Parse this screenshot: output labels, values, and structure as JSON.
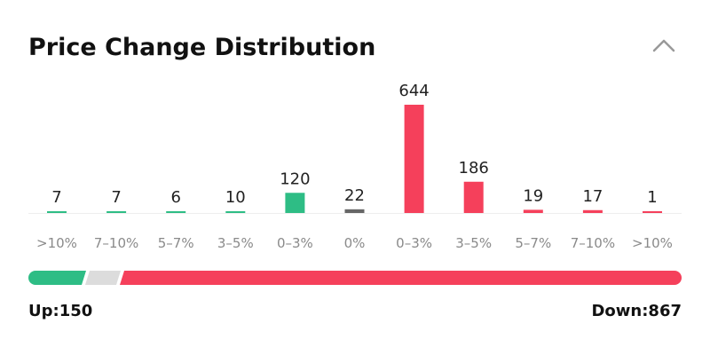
{
  "chart_data": {
    "type": "bar",
    "title": "Price Change Distribution",
    "categories": [
      ">10%",
      "7–10%",
      "5–7%",
      "3–5%",
      "0–3%",
      "0%",
      "0–3%",
      "3–5%",
      "5–7%",
      "7–10%",
      ">10%"
    ],
    "values": [
      7,
      7,
      6,
      10,
      120,
      22,
      644,
      186,
      19,
      17,
      1
    ],
    "colors": [
      "#2ebd85",
      "#2ebd85",
      "#2ebd85",
      "#2ebd85",
      "#2ebd85",
      "#666666",
      "#f5405b",
      "#f5405b",
      "#f5405b",
      "#f5405b",
      "#f5405b"
    ],
    "up_label": "Up:150",
    "down_label": "Down:867"
  }
}
